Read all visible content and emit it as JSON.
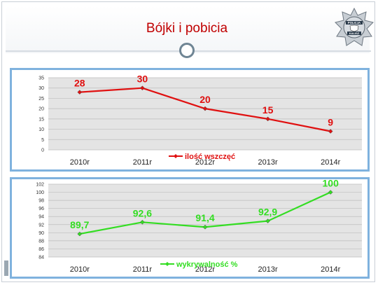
{
  "slide": {
    "title": "Bójki i pobicia",
    "logo": {
      "icon": "police-star-badge-icon",
      "text_top": "POLICJA",
      "text_bottom": "KALISZ"
    },
    "divider_icon": "circle-ring-icon"
  },
  "chart_data": [
    {
      "type": "line",
      "categories": [
        "2010r",
        "2011r",
        "2012r",
        "2013r",
        "2014r"
      ],
      "series": [
        {
          "name": "ilość wszczęć",
          "values": [
            28,
            30,
            20,
            15,
            9
          ],
          "labels": [
            "28",
            "30",
            "20",
            "15",
            "9"
          ],
          "color": "#e01010"
        }
      ],
      "yticks": [
        "0",
        "5",
        "10",
        "15",
        "20",
        "25",
        "30",
        "35"
      ],
      "ylim": [
        0,
        35
      ],
      "grid": true,
      "legend_position": "bottom",
      "plot_background": "#e4e4e4"
    },
    {
      "type": "line",
      "categories": [
        "2010r",
        "2011r",
        "2012r",
        "2013r",
        "2014r"
      ],
      "series": [
        {
          "name": "wykrywalność %",
          "values": [
            89.7,
            92.6,
            91.4,
            92.9,
            100
          ],
          "labels": [
            "89,7",
            "92,6",
            "91,4",
            "92,9",
            "100"
          ],
          "color": "#33dd22"
        }
      ],
      "yticks": [
        "84",
        "86",
        "88",
        "90",
        "92",
        "94",
        "96",
        "98",
        "100",
        "102"
      ],
      "ylim": [
        84,
        102
      ],
      "grid": true,
      "legend_position": "bottom",
      "plot_background": "#e4e4e4"
    }
  ]
}
